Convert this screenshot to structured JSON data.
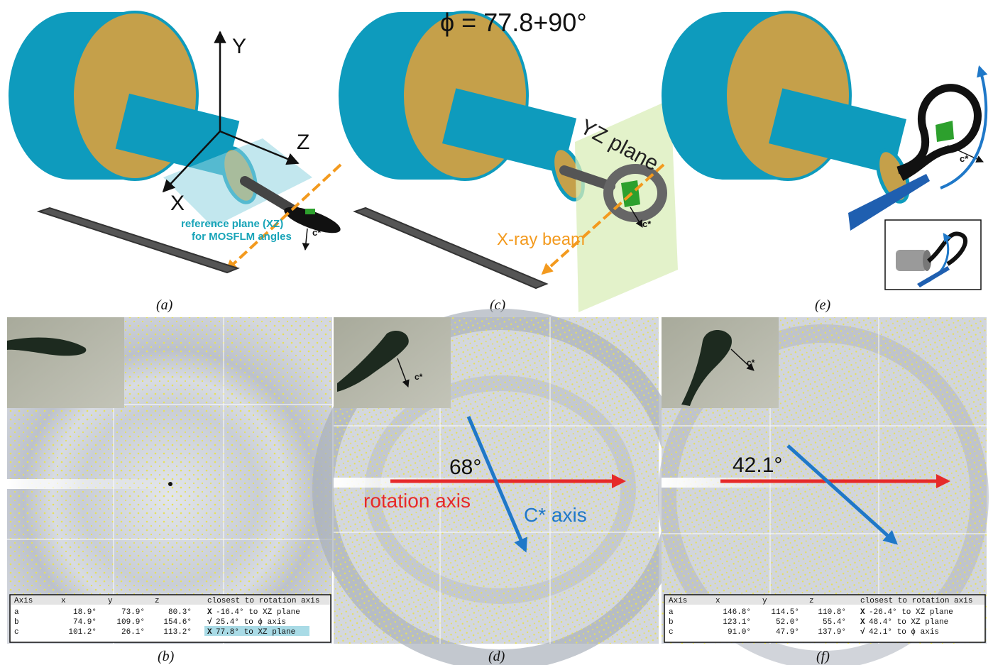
{
  "captions": [
    "(a)",
    "(b)",
    "(c)",
    "(d)",
    "(e)",
    "(f)"
  ],
  "panel_a": {
    "axis_y": "Y",
    "axis_z": "Z",
    "axis_x": "X",
    "ref_line1": "reference plane (XZ)",
    "ref_line2": "for MOSFLM angles",
    "cstar": "c*"
  },
  "panel_c": {
    "phi": "ϕ = 77.8+90°",
    "yz_plane": "YZ plane",
    "xray": "X-ray beam",
    "cstar": "c*"
  },
  "panel_e": {
    "cstar": "c*"
  },
  "panel_d": {
    "cstar": "c*",
    "angle": "68°",
    "rotation_axis": "rotation axis",
    "cstar_axis": "C* axis"
  },
  "panel_f": {
    "cstar": "c*",
    "angle": "42.1°"
  },
  "colors": {
    "teal": "#0e9bbd",
    "gold": "#c5a04a",
    "orange": "#f39a1e",
    "red": "#e62a2a",
    "blue": "#1f78c8",
    "dark": "#2b2b2b",
    "green": "#2da02d"
  },
  "table_headers": [
    "Axis",
    "x",
    "y",
    "z",
    "closest to rotation axis"
  ],
  "table_b": [
    {
      "axis": "a",
      "x": "18.9°",
      "y": "73.9°",
      "z": "80.3°",
      "mark": "X",
      "note": "-16.4° to XZ plane"
    },
    {
      "axis": "b",
      "x": "74.9°",
      "y": "109.9°",
      "z": "154.6°",
      "mark": "√",
      "note": "25.4° to ϕ axis"
    },
    {
      "axis": "c",
      "x": "101.2°",
      "y": "26.1°",
      "z": "113.2°",
      "mark": "X",
      "note": "77.8° to XZ plane"
    }
  ],
  "table_f": [
    {
      "axis": "a",
      "x": "146.8°",
      "y": "114.5°",
      "z": "110.8°",
      "mark": "X",
      "note": "-26.4° to XZ plane"
    },
    {
      "axis": "b",
      "x": "123.1°",
      "y": "52.0°",
      "z": "55.4°",
      "mark": "X",
      "note": "48.4° to XZ plane"
    },
    {
      "axis": "c",
      "x": "91.0°",
      "y": "47.9°",
      "z": "137.9°",
      "mark": "√",
      "note": "42.1° to ϕ axis"
    }
  ]
}
